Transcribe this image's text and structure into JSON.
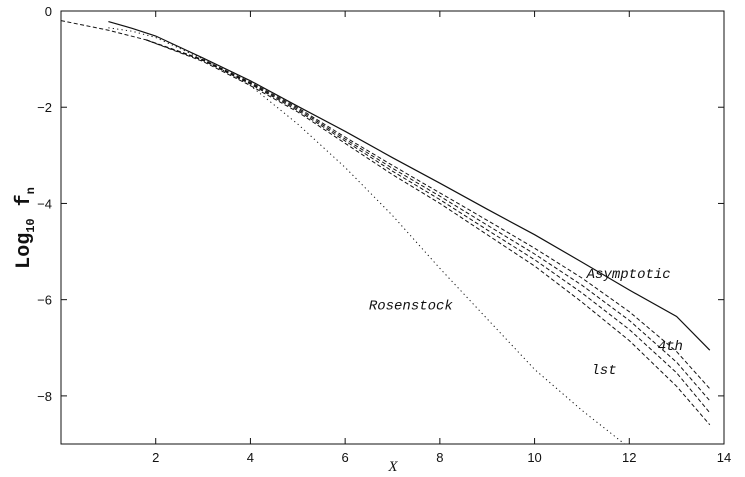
{
  "chart_data": {
    "type": "line",
    "title": "",
    "xlabel": "X",
    "ylabel": {
      "main": "Log",
      "sub": "10",
      "tail": " f",
      "tail_sub": "n"
    },
    "xlim": [
      0,
      14
    ],
    "ylim": [
      -9,
      0
    ],
    "x_ticks": [
      2,
      4,
      6,
      8,
      10,
      12,
      14
    ],
    "y_ticks": [
      0,
      -2,
      -4,
      -6,
      -8
    ],
    "grid": false,
    "legend": "none",
    "series": [
      {
        "key": "asymptotic",
        "style": "solid",
        "x": [
          1.0,
          1.5,
          2.0,
          3.0,
          4.0,
          5.0,
          6.0,
          7.0,
          8.0,
          9.0,
          10.0,
          11.0,
          12.0,
          13.0,
          13.7
        ],
        "y": [
          -0.22,
          -0.36,
          -0.52,
          -0.98,
          -1.45,
          -1.98,
          -2.5,
          -3.05,
          -3.58,
          -4.12,
          -4.65,
          -5.22,
          -5.8,
          -6.35,
          -7.05
        ]
      },
      {
        "key": "rosenstock",
        "style": "dotted",
        "x": [
          1.0,
          1.5,
          2.0,
          3.0,
          4.0,
          5.0,
          6.0,
          7.0,
          8.0,
          9.0,
          10.0,
          11.0,
          11.9
        ],
        "y": [
          -0.35,
          -0.42,
          -0.55,
          -1.0,
          -1.55,
          -2.35,
          -3.25,
          -4.25,
          -5.35,
          -6.4,
          -7.45,
          -8.3,
          -9.0
        ]
      },
      {
        "key": "order-1",
        "style": "dashed",
        "x": [
          0.0,
          1.0,
          1.8,
          3.0,
          4.0,
          5.0,
          6.0,
          7.0,
          8.0,
          9.0,
          10.0,
          11.0,
          12.0,
          13.0,
          13.7
        ],
        "y": [
          -0.2,
          -0.4,
          -0.6,
          -1.05,
          -1.55,
          -2.1,
          -2.75,
          -3.4,
          -4.0,
          -4.65,
          -5.3,
          -6.05,
          -6.85,
          -7.8,
          -8.6
        ]
      },
      {
        "key": "order-2",
        "style": "dashed",
        "x": [
          1.8,
          3.0,
          4.0,
          5.0,
          6.0,
          7.0,
          8.0,
          9.0,
          10.0,
          11.0,
          12.0,
          13.0,
          13.7
        ],
        "y": [
          -0.6,
          -1.03,
          -1.52,
          -2.07,
          -2.7,
          -3.33,
          -3.92,
          -4.55,
          -5.17,
          -5.86,
          -6.62,
          -7.52,
          -8.35
        ]
      },
      {
        "key": "order-3",
        "style": "dashed",
        "x": [
          1.8,
          3.0,
          4.0,
          5.0,
          6.0,
          7.0,
          8.0,
          9.0,
          10.0,
          11.0,
          12.0,
          13.0,
          13.7
        ],
        "y": [
          -0.6,
          -1.02,
          -1.5,
          -2.04,
          -2.66,
          -3.27,
          -3.85,
          -4.45,
          -5.05,
          -5.7,
          -6.43,
          -7.3,
          -8.1
        ]
      },
      {
        "key": "order-4",
        "style": "dashed",
        "x": [
          1.8,
          3.0,
          4.0,
          5.0,
          6.0,
          7.0,
          8.0,
          9.0,
          10.0,
          11.0,
          12.0,
          13.0,
          13.7
        ],
        "y": [
          -0.6,
          -1.01,
          -1.48,
          -2.01,
          -2.62,
          -3.21,
          -3.78,
          -4.35,
          -4.93,
          -5.55,
          -6.25,
          -7.08,
          -7.85
        ]
      }
    ],
    "annotations": [
      {
        "key": "asymptotic",
        "text": "Asymptotic",
        "x": 11.1,
        "y": -5.55
      },
      {
        "key": "rosenstock",
        "text": "Rosenstock",
        "x": 6.5,
        "y": -6.2
      },
      {
        "key": "4th",
        "text": "4th",
        "x": 12.6,
        "y": -7.05
      },
      {
        "key": "1st",
        "text": "lst",
        "x": 11.2,
        "y": -7.55
      }
    ]
  }
}
